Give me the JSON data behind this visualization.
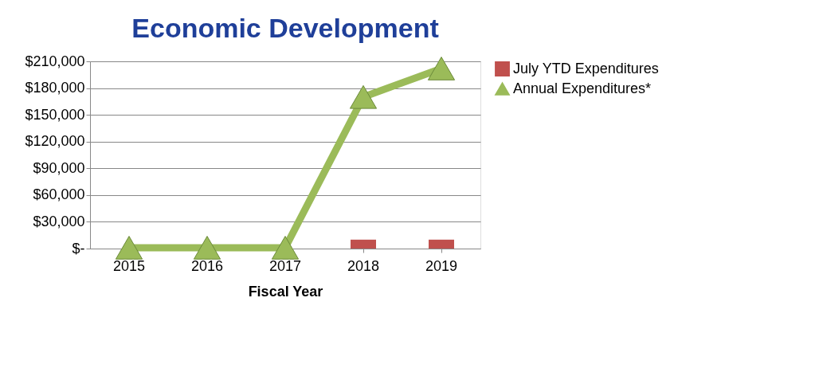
{
  "chart_data": {
    "type": "bar",
    "title": "Economic Development",
    "xlabel": "Fiscal Year",
    "categories": [
      "2015",
      "2016",
      "2017",
      "2018",
      "2019"
    ],
    "series": [
      {
        "name": "July YTD Expenditures",
        "color": "#c0504d",
        "values": [
          null,
          null,
          null,
          10000,
          10000
        ]
      },
      {
        "name": "Annual Expenditures*",
        "type": "line",
        "color": "#9bbb59",
        "marker": "triangle",
        "values": [
          1000,
          1000,
          1000,
          170000,
          202000
        ]
      }
    ],
    "ylim": [
      0,
      210000
    ],
    "yticks": [
      {
        "value": 0,
        "label": "$-"
      },
      {
        "value": 30000,
        "label": "$30,000"
      },
      {
        "value": 60000,
        "label": "$60,000"
      },
      {
        "value": 90000,
        "label": "$90,000"
      },
      {
        "value": 120000,
        "label": "$120,000"
      },
      {
        "value": 150000,
        "label": "$150,000"
      },
      {
        "value": 180000,
        "label": "$180,000"
      },
      {
        "value": 210000,
        "label": "$210,000"
      }
    ],
    "grid": "y",
    "legend": "right"
  }
}
